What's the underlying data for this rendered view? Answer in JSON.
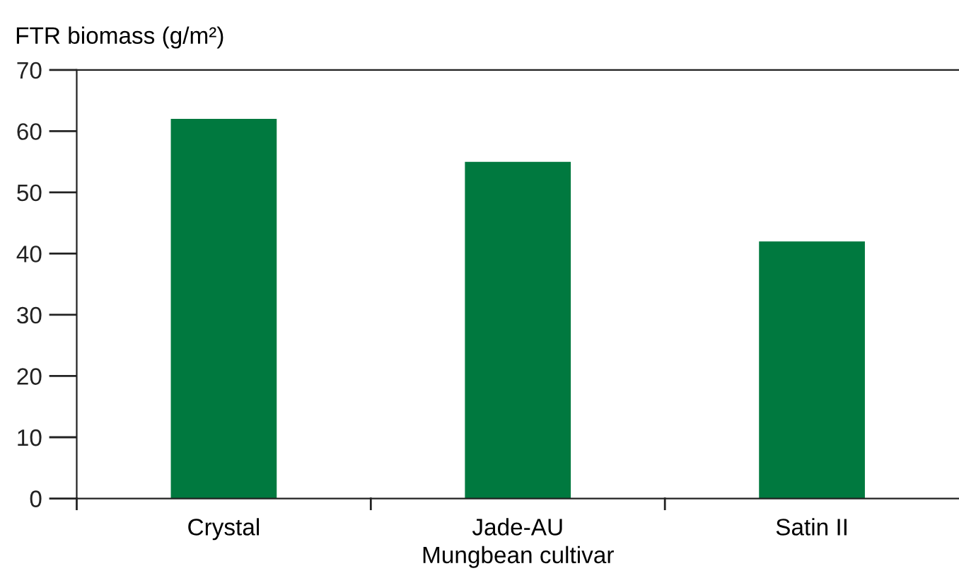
{
  "chart_data": {
    "type": "bar",
    "xlabel": "Mungbean cultivar",
    "ylabel": "FTR biomass (g/m²)",
    "categories": [
      "Crystal",
      "Jade-AU",
      "Satin II"
    ],
    "values": [
      62,
      55,
      42
    ],
    "color": "#00793f",
    "ylim": [
      0,
      70
    ],
    "yticks": [
      0,
      10,
      20,
      30,
      40,
      50,
      60,
      70
    ],
    "grid": false,
    "legend": false
  }
}
